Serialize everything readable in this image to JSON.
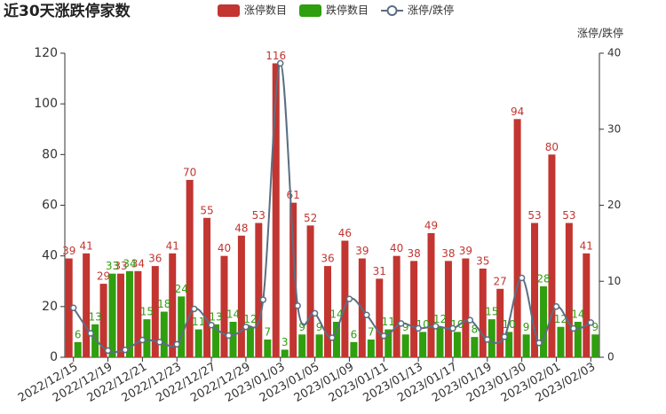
{
  "chart_data": {
    "type": "bar-line",
    "title": "近30天涨跌停家数",
    "y2_label": "涨停/跌停",
    "categories": [
      "2022/12/15",
      null,
      "2022/12/19",
      null,
      "2022/12/21",
      null,
      "2022/12/23",
      null,
      "2022/12/27",
      null,
      "2022/12/29",
      null,
      "2023/01/03",
      null,
      "2023/01/05",
      null,
      "2023/01/09",
      null,
      "2023/01/11",
      null,
      "2023/01/13",
      null,
      "2023/01/17",
      null,
      "2023/01/19",
      null,
      "2023/01/30",
      null,
      "2023/02/01",
      null,
      "2023/02/03"
    ],
    "series": [
      {
        "name": "涨停数目",
        "kind": "bar",
        "color": "#c23531",
        "values": [
          39,
          41,
          29,
          33,
          34,
          36,
          41,
          70,
          55,
          40,
          48,
          53,
          116,
          61,
          52,
          36,
          46,
          39,
          31,
          40,
          38,
          49,
          38,
          39,
          35,
          27,
          94,
          53,
          80,
          53,
          41
        ]
      },
      {
        "name": "跌停数目",
        "kind": "bar",
        "color": "#2f9e0f",
        "values": [
          6,
          13,
          33,
          34,
          15,
          18,
          24,
          11,
          13,
          14,
          12,
          7,
          3,
          9,
          9,
          14,
          6,
          7,
          11,
          9,
          10,
          12,
          10,
          8,
          15,
          10,
          9,
          28,
          12,
          14,
          9
        ]
      },
      {
        "name": "涨停/跌停",
        "kind": "line",
        "axis": "y2",
        "color": "#5b6e82",
        "values": [
          6.5,
          3.15,
          0.88,
          0.97,
          2.27,
          2,
          1.71,
          6.36,
          4.23,
          2.86,
          4,
          7.57,
          38.67,
          6.78,
          5.78,
          2.57,
          7.67,
          5.57,
          2.82,
          4.44,
          3.8,
          4.08,
          3.8,
          4.88,
          2.33,
          2.7,
          10.44,
          1.89,
          6.67,
          3.79,
          4.56
        ]
      }
    ],
    "ylim": [
      0,
      120
    ],
    "yticks": [
      0,
      20,
      40,
      60,
      80,
      100,
      120
    ],
    "y2lim": [
      0,
      40
    ],
    "y2ticks": [
      0,
      10,
      20,
      30,
      40
    ]
  }
}
